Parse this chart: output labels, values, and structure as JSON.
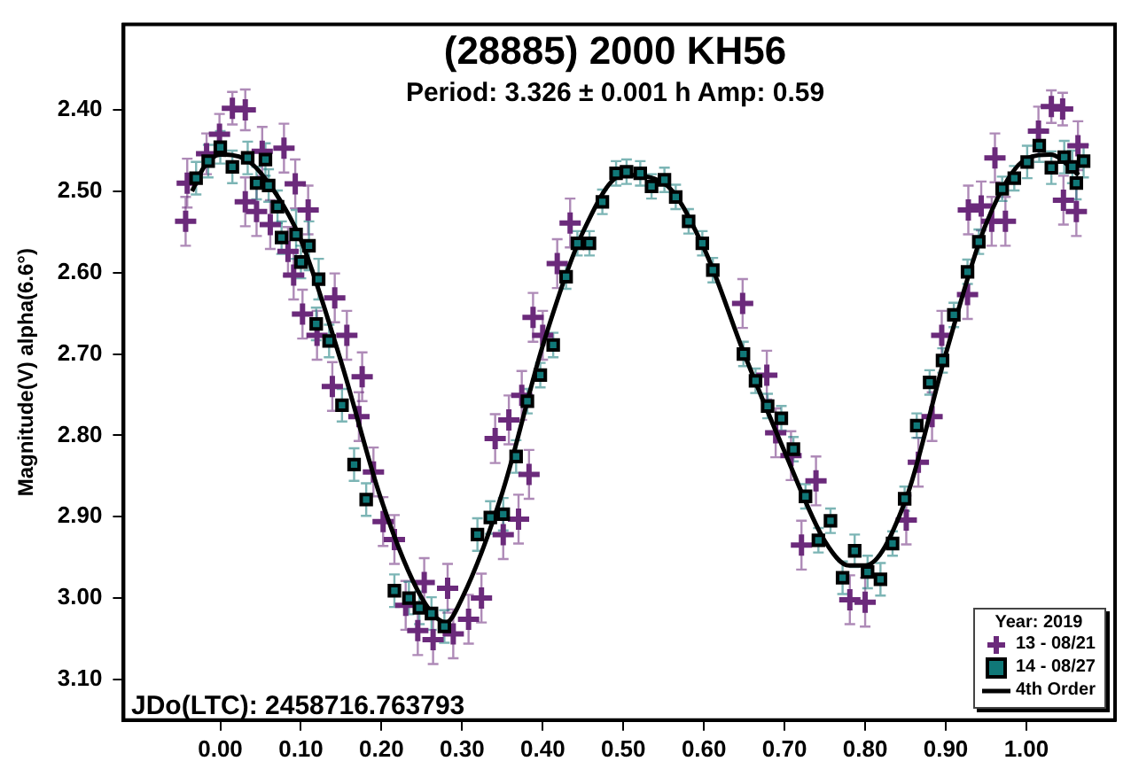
{
  "chart_data": {
    "type": "scatter",
    "title": "(28885) 2000 KH56",
    "subtitle": "Period: 3.326 ± 0.001 h  Amp: 0.59",
    "ylabel": "Magnitude(V) alpha(6.6°)",
    "legend_title": "Year: 2019",
    "legend": "bottom right",
    "grid": false,
    "annotations": [
      "JDo(LTC): 2458716.763793"
    ],
    "xlim": [
      -0.12,
      1.11
    ],
    "ylim": [
      3.15,
      2.295
    ],
    "xticks": [
      {
        "value": 0,
        "label": "0.00"
      },
      {
        "value": 0.1,
        "label": "0.10"
      },
      {
        "value": 0.2,
        "label": "0.20"
      },
      {
        "value": 0.3,
        "label": "0.30"
      },
      {
        "value": 0.4,
        "label": "0.40"
      },
      {
        "value": 0.5,
        "label": "0.50"
      },
      {
        "value": 0.6,
        "label": "0.60"
      },
      {
        "value": 0.7,
        "label": "0.70"
      },
      {
        "value": 0.8,
        "label": "0.80"
      },
      {
        "value": 0.9,
        "label": "0.90"
      },
      {
        "value": 1,
        "label": "1.00"
      }
    ],
    "yticks": [
      {
        "value": 2.4,
        "label": "2.40"
      },
      {
        "value": 2.5,
        "label": "2.50"
      },
      {
        "value": 2.6,
        "label": "2.60"
      },
      {
        "value": 2.7,
        "label": "2.70"
      },
      {
        "value": 2.8,
        "label": "2.80"
      },
      {
        "value": 2.9,
        "label": "2.90"
      },
      {
        "value": 3.0,
        "label": "3.00"
      },
      {
        "value": 3.1,
        "label": "3.10"
      }
    ],
    "series": [
      {
        "name": "13 - 08/21",
        "marker": "cross",
        "color": "#6b2a7b",
        "x": [
          -0.043,
          -0.041,
          -0.017,
          -0.001,
          0.015,
          0.031,
          0.031,
          0.045,
          0.052,
          0.062,
          0.079,
          0.084,
          0.091,
          0.093,
          0.102,
          0.109,
          0.12,
          0.139,
          0.142,
          0.157,
          0.172,
          0.176,
          0.19,
          0.202,
          0.216,
          0.23,
          0.245,
          0.253,
          0.264,
          0.282,
          0.289,
          0.308,
          0.324,
          0.341,
          0.351,
          0.358,
          0.37,
          0.374,
          0.383,
          0.388,
          0.4,
          0.418,
          0.434,
          0.648,
          0.678,
          0.689,
          0.708,
          0.721,
          0.739,
          0.781,
          0.8,
          0.851,
          0.866,
          0.883,
          0.895,
          0.927,
          0.928,
          0.944,
          0.957,
          0.961,
          0.974,
          1.015,
          1.031,
          1.045,
          1.046,
          1.062,
          1.064
        ],
        "values": [
          2.537,
          2.49,
          2.454,
          2.43,
          2.398,
          2.4,
          2.513,
          2.525,
          2.451,
          2.541,
          2.447,
          2.574,
          2.603,
          2.491,
          2.651,
          2.523,
          2.677,
          2.74,
          2.631,
          2.677,
          2.777,
          2.728,
          2.845,
          2.906,
          2.928,
          3.009,
          3.04,
          2.981,
          3.051,
          2.988,
          3.044,
          3.026,
          3.0,
          2.804,
          2.922,
          2.781,
          2.903,
          2.751,
          2.848,
          2.655,
          2.677,
          2.589,
          2.539,
          2.638,
          2.726,
          2.797,
          2.825,
          2.935,
          2.856,
          3.002,
          3.005,
          2.904,
          2.833,
          2.777,
          2.677,
          2.627,
          2.523,
          2.518,
          2.537,
          2.459,
          2.537,
          2.426,
          2.396,
          2.399,
          2.511,
          2.525,
          2.444
        ],
        "errors": [
          0.03,
          0.03,
          0.025,
          0.025,
          0.02,
          0.025,
          0.03,
          0.03,
          0.03,
          0.03,
          0.03,
          0.03,
          0.03,
          0.03,
          0.03,
          0.03,
          0.03,
          0.03,
          0.03,
          0.03,
          0.03,
          0.03,
          0.03,
          0.03,
          0.03,
          0.03,
          0.03,
          0.03,
          0.03,
          0.03,
          0.03,
          0.03,
          0.03,
          0.03,
          0.03,
          0.03,
          0.03,
          0.03,
          0.03,
          0.03,
          0.03,
          0.03,
          0.03,
          0.03,
          0.03,
          0.03,
          0.03,
          0.03,
          0.03,
          0.03,
          0.03,
          0.03,
          0.03,
          0.03,
          0.03,
          0.03,
          0.03,
          0.03,
          0.03,
          0.03,
          0.03,
          0.03,
          0.02,
          0.02,
          0.03,
          0.03,
          0.03
        ]
      },
      {
        "name": "14 - 08/27",
        "marker": "square",
        "color": "#107878",
        "x": [
          -0.03,
          -0.015,
          0.0,
          0.015,
          0.034,
          0.045,
          0.056,
          0.06,
          0.071,
          0.076,
          0.094,
          0.1,
          0.11,
          0.119,
          0.122,
          0.135,
          0.151,
          0.166,
          0.181,
          0.216,
          0.234,
          0.247,
          0.262,
          0.278,
          0.319,
          0.335,
          0.351,
          0.367,
          0.381,
          0.397,
          0.413,
          0.429,
          0.443,
          0.458,
          0.474,
          0.491,
          0.504,
          0.521,
          0.535,
          0.551,
          0.565,
          0.581,
          0.598,
          0.611,
          0.649,
          0.664,
          0.679,
          0.696,
          0.711,
          0.726,
          0.742,
          0.757,
          0.772,
          0.787,
          0.803,
          0.819,
          0.834,
          0.849,
          0.864,
          0.88,
          0.896,
          0.91,
          0.927,
          0.941,
          0.97,
          0.985,
          1.001,
          1.016,
          1.031,
          1.047,
          1.057,
          1.062,
          1.071
        ],
        "values": [
          2.484,
          2.463,
          2.446,
          2.47,
          2.459,
          2.49,
          2.461,
          2.493,
          2.519,
          2.557,
          2.553,
          2.587,
          2.567,
          2.663,
          2.608,
          2.684,
          2.763,
          2.836,
          2.879,
          2.991,
          3.0,
          3.012,
          3.019,
          3.035,
          2.922,
          2.901,
          2.897,
          2.826,
          2.758,
          2.726,
          2.689,
          2.605,
          2.564,
          2.564,
          2.513,
          2.478,
          2.476,
          2.478,
          2.494,
          2.486,
          2.507,
          2.537,
          2.564,
          2.597,
          2.7,
          2.733,
          2.764,
          2.779,
          2.817,
          2.875,
          2.929,
          2.905,
          2.975,
          2.942,
          2.968,
          2.977,
          2.933,
          2.878,
          2.788,
          2.735,
          2.708,
          2.652,
          2.599,
          2.562,
          2.497,
          2.484,
          2.464,
          2.444,
          2.471,
          2.458,
          2.47,
          2.49,
          2.463
        ],
        "errors": [
          0.02,
          0.02,
          0.02,
          0.02,
          0.02,
          0.02,
          0.02,
          0.02,
          0.02,
          0.02,
          0.03,
          0.02,
          0.03,
          0.02,
          0.025,
          0.02,
          0.02,
          0.02,
          0.02,
          0.02,
          0.02,
          0.02,
          0.02,
          0.02,
          0.02,
          0.02,
          0.02,
          0.02,
          0.015,
          0.015,
          0.015,
          0.015,
          0.015,
          0.015,
          0.015,
          0.015,
          0.015,
          0.015,
          0.015,
          0.015,
          0.015,
          0.015,
          0.015,
          0.015,
          0.015,
          0.015,
          0.015,
          0.015,
          0.015,
          0.015,
          0.015,
          0.015,
          0.02,
          0.02,
          0.02,
          0.02,
          0.015,
          0.015,
          0.015,
          0.015,
          0.015,
          0.015,
          0.015,
          0.015,
          0.015,
          0.015,
          0.02,
          0.02,
          0.02,
          0.02,
          0.02,
          0.02,
          0.02
        ]
      },
      {
        "name": "4th Order",
        "type": "line",
        "marker": "none",
        "line_style": "solid",
        "color": "#000000",
        "x": [
          -0.035,
          -0.02,
          0.0,
          0.03,
          0.06,
          0.1,
          0.15,
          0.2,
          0.25,
          0.28,
          0.3,
          0.35,
          0.4,
          0.45,
          0.5,
          0.55,
          0.6,
          0.65,
          0.7,
          0.75,
          0.78,
          0.8,
          0.85,
          0.9,
          0.95,
          1.0,
          1.03,
          1.065
        ],
        "values": [
          2.5,
          2.47,
          2.455,
          2.46,
          2.49,
          2.56,
          2.71,
          2.88,
          3.0,
          3.03,
          3.0,
          2.87,
          2.69,
          2.55,
          2.48,
          2.49,
          2.57,
          2.7,
          2.82,
          2.93,
          2.96,
          2.96,
          2.88,
          2.7,
          2.54,
          2.46,
          2.455,
          2.48
        ]
      }
    ]
  }
}
